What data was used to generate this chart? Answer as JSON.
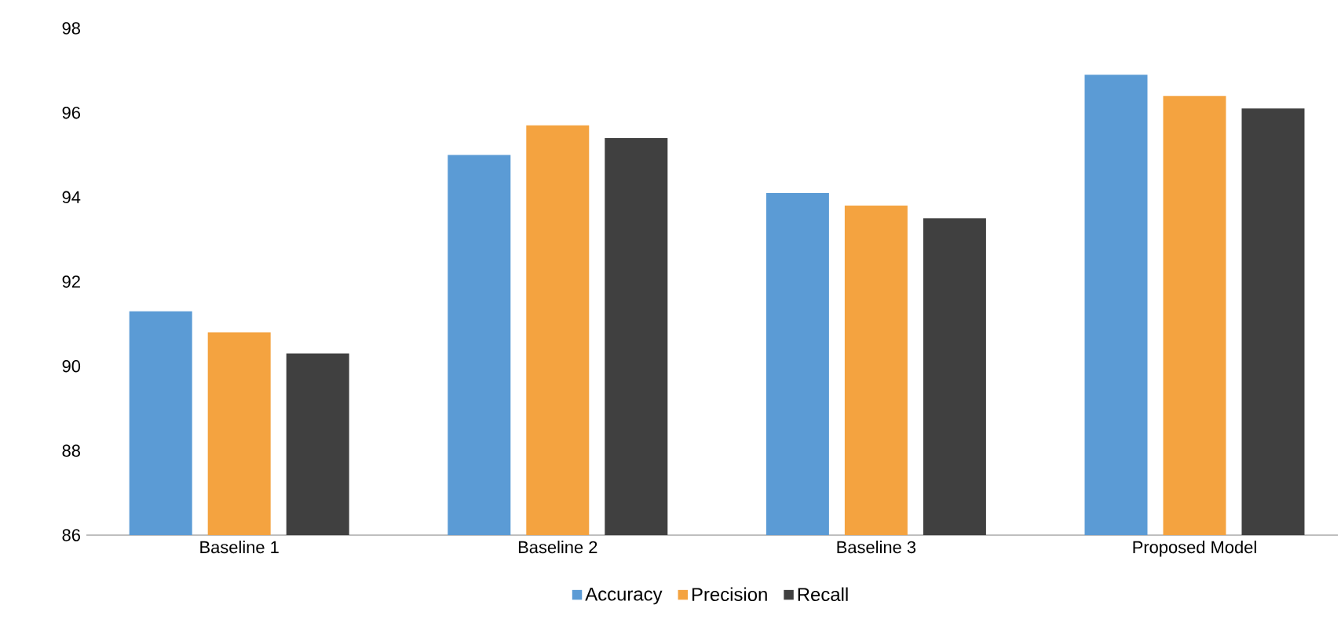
{
  "chart_data": {
    "type": "bar",
    "categories": [
      "Baseline 1",
      "Baseline 2",
      "Baseline 3",
      "Proposed Model"
    ],
    "series": [
      {
        "name": "Accuracy",
        "color": "#5b9bd5",
        "values": [
          91.3,
          95.0,
          94.1,
          96.9
        ]
      },
      {
        "name": "Precision",
        "color": "#f4a340",
        "values": [
          90.8,
          95.7,
          93.8,
          96.4
        ]
      },
      {
        "name": "Recall",
        "color": "#404040",
        "values": [
          90.3,
          95.4,
          93.5,
          96.1
        ]
      }
    ],
    "ylim": [
      86,
      98
    ],
    "yticks": [
      86,
      88,
      90,
      92,
      94,
      96,
      98
    ],
    "grid": false,
    "legend": "bottom"
  }
}
